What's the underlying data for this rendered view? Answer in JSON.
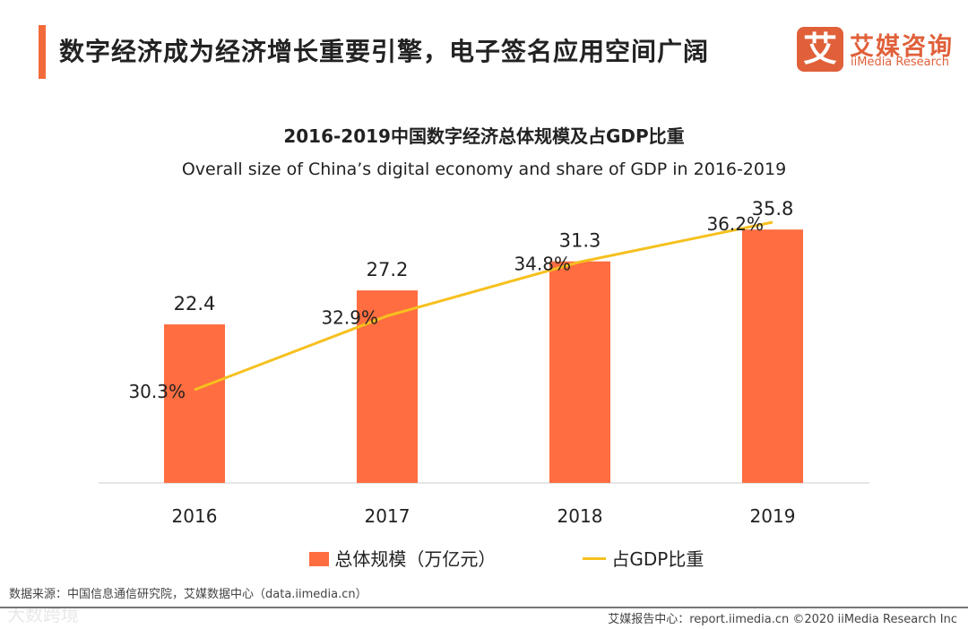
{
  "header": {
    "title": "数字经济成为经济增长重要引擎，电子签名应用空间广阔",
    "logo_mark": "艾",
    "logo_cn": "艾媒咨询",
    "logo_en": "iiMedia Research"
  },
  "chart_data": {
    "type": "bar",
    "title": "2016-2019中国数字经济总体规模及占GDP比重",
    "subtitle": "Overall size of China’s digital economy and share of GDP in 2016-2019",
    "categories": [
      "2016",
      "2017",
      "2018",
      "2019"
    ],
    "series": [
      {
        "name": "总体规模（万亿元）",
        "type": "bar",
        "values": [
          22.4,
          27.2,
          31.3,
          35.8
        ],
        "labels": [
          "22.4",
          "27.2",
          "31.3",
          "35.8"
        ],
        "color": "#ff6d40"
      },
      {
        "name": "占GDP比重",
        "type": "line",
        "values": [
          30.3,
          32.9,
          34.8,
          36.2
        ],
        "labels": [
          "30.3%",
          "32.9%",
          "34.8%",
          "36.2%"
        ],
        "color": "#f6c01e"
      }
    ],
    "legend": "bottom",
    "grid": false
  },
  "footer": {
    "source": "数据来源：中国信息通信研究院，艾媒数据中心（data.iimedia.cn）",
    "report": "艾媒报告中心：report.iimedia.cn  ©2020 iiMedia Research Inc",
    "watermark": "大数跨境"
  }
}
